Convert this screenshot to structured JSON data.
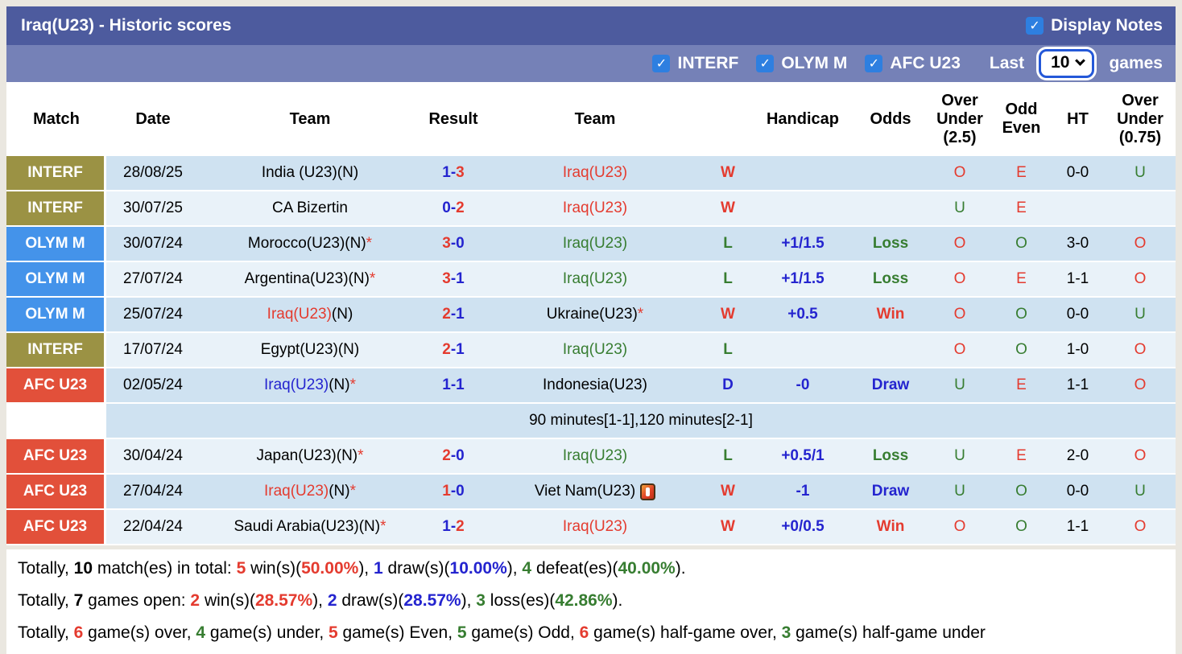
{
  "header": {
    "title": "Iraq(U23) - Historic scores",
    "display_notes": {
      "label": "Display Notes",
      "checked": true,
      "check_glyph": "✓"
    },
    "filters": [
      {
        "label": "INTERF",
        "checked": true
      },
      {
        "label": "OLYM M",
        "checked": true
      },
      {
        "label": "AFC U23",
        "checked": true
      }
    ],
    "last_label": "Last",
    "games_count": "10",
    "games_label": "games"
  },
  "colors": {
    "bar1": "#4d5b9e",
    "bar2": "#7581b7",
    "checkbox_blue": "#2e7fe0",
    "row_dark": "#cfe2f1",
    "row_light": "#e9f2f9",
    "text_red": "#e43b2f",
    "text_blue": "#2424cf",
    "text_green": "#377d31"
  },
  "table": {
    "columns": [
      "Match",
      "Date",
      "Team",
      "Result",
      "Team",
      "",
      "Handicap",
      "Odds",
      "Over\nUnder\n(2.5)",
      "Odd\nEven",
      "HT",
      "Over\nUnder\n(0.75)"
    ],
    "badge_colors": {
      "INTERF": "#9b9244",
      "OLYM M": "#4493ea",
      "AFC U23": "#e2503a"
    },
    "rows": [
      {
        "league": "INTERF",
        "date": "28/08/25",
        "home": [
          [
            "India (U23)(N)",
            "k"
          ]
        ],
        "result": [
          [
            "1-",
            "b"
          ],
          [
            "3",
            "r"
          ]
        ],
        "away": [
          [
            "Iraq(U23)",
            "r"
          ]
        ],
        "wl": [
          [
            "W",
            "r"
          ]
        ],
        "handicap": [],
        "odds": [],
        "ou25": [
          [
            "O",
            "r"
          ]
        ],
        "oe": [
          [
            "E",
            "r"
          ]
        ],
        "ht": "0-0",
        "ou075": [
          [
            "U",
            "g"
          ]
        ]
      },
      {
        "league": "INTERF",
        "date": "30/07/25",
        "home": [
          [
            "CA Bizertin",
            "k"
          ]
        ],
        "result": [
          [
            "0-",
            "b"
          ],
          [
            "2",
            "r"
          ]
        ],
        "away": [
          [
            "Iraq(U23)",
            "r"
          ]
        ],
        "wl": [
          [
            "W",
            "r"
          ]
        ],
        "handicap": [],
        "odds": [],
        "ou25": [
          [
            "U",
            "g"
          ]
        ],
        "oe": [
          [
            "E",
            "r"
          ]
        ],
        "ht": "",
        "ou075": []
      },
      {
        "league": "OLYM M",
        "date": "30/07/24",
        "home": [
          [
            "Morocco(U23)(N)",
            "k"
          ],
          [
            "*",
            "r"
          ]
        ],
        "result": [
          [
            "3",
            "r"
          ],
          [
            "-0",
            "b"
          ]
        ],
        "away": [
          [
            "Iraq(U23)",
            "g"
          ]
        ],
        "wl": [
          [
            "L",
            "g"
          ]
        ],
        "handicap": [
          [
            "+1/1.5",
            "b"
          ]
        ],
        "odds": [
          [
            "Loss",
            "g"
          ]
        ],
        "ou25": [
          [
            "O",
            "r"
          ]
        ],
        "oe": [
          [
            "O",
            "g"
          ]
        ],
        "ht": "3-0",
        "ou075": [
          [
            "O",
            "r"
          ]
        ]
      },
      {
        "league": "OLYM M",
        "date": "27/07/24",
        "home": [
          [
            "Argentina(U23)(N)",
            "k"
          ],
          [
            "*",
            "r"
          ]
        ],
        "result": [
          [
            "3",
            "r"
          ],
          [
            "-1",
            "b"
          ]
        ],
        "away": [
          [
            "Iraq(U23)",
            "g"
          ]
        ],
        "wl": [
          [
            "L",
            "g"
          ]
        ],
        "handicap": [
          [
            "+1/1.5",
            "b"
          ]
        ],
        "odds": [
          [
            "Loss",
            "g"
          ]
        ],
        "ou25": [
          [
            "O",
            "r"
          ]
        ],
        "oe": [
          [
            "E",
            "r"
          ]
        ],
        "ht": "1-1",
        "ou075": [
          [
            "O",
            "r"
          ]
        ]
      },
      {
        "league": "OLYM M",
        "date": "25/07/24",
        "home": [
          [
            "Iraq(U23)",
            "r"
          ],
          [
            "(N)",
            "k"
          ]
        ],
        "result": [
          [
            "2",
            "r"
          ],
          [
            "-1",
            "b"
          ]
        ],
        "away": [
          [
            "Ukraine(U23)",
            "k"
          ],
          [
            "*",
            "r"
          ]
        ],
        "wl": [
          [
            "W",
            "r"
          ]
        ],
        "handicap": [
          [
            "+0.5",
            "b"
          ]
        ],
        "odds": [
          [
            "Win",
            "r"
          ]
        ],
        "ou25": [
          [
            "O",
            "r"
          ]
        ],
        "oe": [
          [
            "O",
            "g"
          ]
        ],
        "ht": "0-0",
        "ou075": [
          [
            "U",
            "g"
          ]
        ]
      },
      {
        "league": "INTERF",
        "date": "17/07/24",
        "home": [
          [
            "Egypt(U23)(N)",
            "k"
          ]
        ],
        "result": [
          [
            "2",
            "r"
          ],
          [
            "-1",
            "b"
          ]
        ],
        "away": [
          [
            "Iraq(U23)",
            "g"
          ]
        ],
        "wl": [
          [
            "L",
            "g"
          ]
        ],
        "handicap": [],
        "odds": [],
        "ou25": [
          [
            "O",
            "r"
          ]
        ],
        "oe": [
          [
            "O",
            "g"
          ]
        ],
        "ht": "1-0",
        "ou075": [
          [
            "O",
            "r"
          ]
        ]
      },
      {
        "league": "AFC U23",
        "date": "02/05/24",
        "home": [
          [
            "Iraq(U23)",
            "b"
          ],
          [
            "(N)",
            "k"
          ],
          [
            "*",
            "r"
          ]
        ],
        "result": [
          [
            "1-1",
            "b"
          ]
        ],
        "away": [
          [
            "Indonesia(U23)",
            "k"
          ]
        ],
        "wl": [
          [
            "D",
            "b"
          ]
        ],
        "handicap": [
          [
            "-0",
            "b"
          ]
        ],
        "odds": [
          [
            "Draw",
            "b"
          ]
        ],
        "ou25": [
          [
            "U",
            "g"
          ]
        ],
        "oe": [
          [
            "E",
            "r"
          ]
        ],
        "ht": "1-1",
        "ou075": [
          [
            "O",
            "r"
          ]
        ],
        "note": "90 minutes[1-1],120 minutes[2-1]"
      },
      {
        "league": "AFC U23",
        "date": "30/04/24",
        "home": [
          [
            "Japan(U23)(N)",
            "k"
          ],
          [
            "*",
            "r"
          ]
        ],
        "result": [
          [
            "2",
            "r"
          ],
          [
            "-0",
            "b"
          ]
        ],
        "away": [
          [
            "Iraq(U23)",
            "g"
          ]
        ],
        "wl": [
          [
            "L",
            "g"
          ]
        ],
        "handicap": [
          [
            "+0.5/1",
            "b"
          ]
        ],
        "odds": [
          [
            "Loss",
            "g"
          ]
        ],
        "ou25": [
          [
            "U",
            "g"
          ]
        ],
        "oe": [
          [
            "E",
            "r"
          ]
        ],
        "ht": "2-0",
        "ou075": [
          [
            "O",
            "r"
          ]
        ]
      },
      {
        "league": "AFC U23",
        "date": "27/04/24",
        "home": [
          [
            "Iraq(U23)",
            "r"
          ],
          [
            "(N)",
            "k"
          ],
          [
            "*",
            "r"
          ]
        ],
        "result": [
          [
            "1",
            "r"
          ],
          [
            "-0",
            "b"
          ]
        ],
        "away": [
          [
            "Viet Nam(U23)",
            "k"
          ]
        ],
        "away_icon": "red-card",
        "wl": [
          [
            "W",
            "r"
          ]
        ],
        "handicap": [
          [
            "-1",
            "b"
          ]
        ],
        "odds": [
          [
            "Draw",
            "b"
          ]
        ],
        "ou25": [
          [
            "U",
            "g"
          ]
        ],
        "oe": [
          [
            "O",
            "g"
          ]
        ],
        "ht": "0-0",
        "ou075": [
          [
            "U",
            "g"
          ]
        ]
      },
      {
        "league": "AFC U23",
        "date": "22/04/24",
        "home": [
          [
            "Saudi Arabia(U23)(N)",
            "k"
          ],
          [
            "*",
            "r"
          ]
        ],
        "result": [
          [
            "1-",
            "b"
          ],
          [
            "2",
            "r"
          ]
        ],
        "away": [
          [
            "Iraq(U23)",
            "r"
          ]
        ],
        "wl": [
          [
            "W",
            "r"
          ]
        ],
        "handicap": [
          [
            "+0/0.5",
            "b"
          ]
        ],
        "odds": [
          [
            "Win",
            "r"
          ]
        ],
        "ou25": [
          [
            "O",
            "r"
          ]
        ],
        "oe": [
          [
            "O",
            "g"
          ]
        ],
        "ht": "1-1",
        "ou075": [
          [
            "O",
            "r"
          ]
        ]
      }
    ]
  },
  "summary": [
    [
      [
        "Totally, ",
        "k",
        0
      ],
      [
        "10",
        "k",
        1
      ],
      [
        " match(es) in total: ",
        "k",
        0
      ],
      [
        "5",
        "r",
        1
      ],
      [
        " win(s)(",
        "k",
        0
      ],
      [
        "50.00%",
        "r",
        1
      ],
      [
        "), ",
        "k",
        0
      ],
      [
        "1",
        "b",
        1
      ],
      [
        " draw(s)(",
        "k",
        0
      ],
      [
        "10.00%",
        "b",
        1
      ],
      [
        "), ",
        "k",
        0
      ],
      [
        "4",
        "g",
        1
      ],
      [
        " defeat(es)(",
        "k",
        0
      ],
      [
        "40.00%",
        "g",
        1
      ],
      [
        ").",
        "k",
        0
      ]
    ],
    [
      [
        "Totally, ",
        "k",
        0
      ],
      [
        "7",
        "k",
        1
      ],
      [
        " games open: ",
        "k",
        0
      ],
      [
        "2",
        "r",
        1
      ],
      [
        " win(s)(",
        "k",
        0
      ],
      [
        "28.57%",
        "r",
        1
      ],
      [
        "), ",
        "k",
        0
      ],
      [
        "2",
        "b",
        1
      ],
      [
        " draw(s)(",
        "k",
        0
      ],
      [
        "28.57%",
        "b",
        1
      ],
      [
        "), ",
        "k",
        0
      ],
      [
        "3",
        "g",
        1
      ],
      [
        " loss(es)(",
        "k",
        0
      ],
      [
        "42.86%",
        "g",
        1
      ],
      [
        ").",
        "k",
        0
      ]
    ],
    [
      [
        "Totally, ",
        "k",
        0
      ],
      [
        "6",
        "r",
        1
      ],
      [
        " game(s) over, ",
        "k",
        0
      ],
      [
        "4",
        "g",
        1
      ],
      [
        " game(s) under, ",
        "k",
        0
      ],
      [
        "5",
        "r",
        1
      ],
      [
        " game(s) Even, ",
        "k",
        0
      ],
      [
        "5",
        "g",
        1
      ],
      [
        " game(s) Odd, ",
        "k",
        0
      ],
      [
        "6",
        "r",
        1
      ],
      [
        " game(s) half-game over, ",
        "k",
        0
      ],
      [
        "3",
        "g",
        1
      ],
      [
        " game(s) half-game under",
        "k",
        0
      ]
    ]
  ]
}
